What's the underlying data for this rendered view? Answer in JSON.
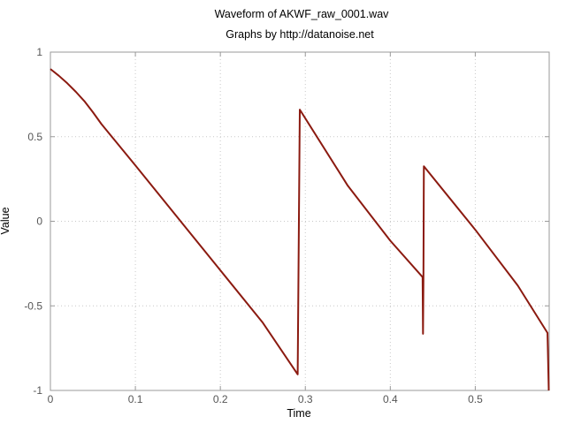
{
  "chart_data": {
    "type": "line",
    "title": "Waveform of AKWF_raw_0001.wav",
    "subtitle": "Graphs by http://datanoise.net",
    "xlabel": "Time",
    "ylabel": "Value",
    "xlim": [
      0,
      0.587
    ],
    "ylim": [
      -1,
      1
    ],
    "x_ticks": [
      0,
      0.1,
      0.2,
      0.3,
      0.4,
      0.5
    ],
    "x_tick_labels": [
      "0",
      "0.1",
      "0.2",
      "0.3",
      "0.4",
      "0.5"
    ],
    "y_ticks": [
      1,
      0.5,
      0,
      -0.5,
      -1
    ],
    "y_tick_labels": [
      "1",
      "0.5",
      "0",
      "-0.5",
      "-1"
    ],
    "grid": true,
    "series": [
      {
        "color": "#8b1a10",
        "x": [
          0,
          0.01,
          0.02,
          0.03,
          0.04,
          0.05,
          0.06,
          0.1,
          0.15,
          0.2,
          0.25,
          0.291,
          0.2935,
          0.35,
          0.4,
          0.438,
          0.4385,
          0.439,
          0.4395,
          0.5,
          0.55,
          0.585,
          0.5865
        ],
        "y": [
          0.9,
          0.86,
          0.815,
          0.765,
          0.71,
          0.645,
          0.575,
          0.33,
          0.02,
          -0.29,
          -0.6,
          -0.905,
          0.66,
          0.21,
          -0.115,
          -0.33,
          -0.665,
          -0.33,
          0.325,
          -0.05,
          -0.38,
          -0.66,
          -1.0
        ]
      }
    ]
  }
}
